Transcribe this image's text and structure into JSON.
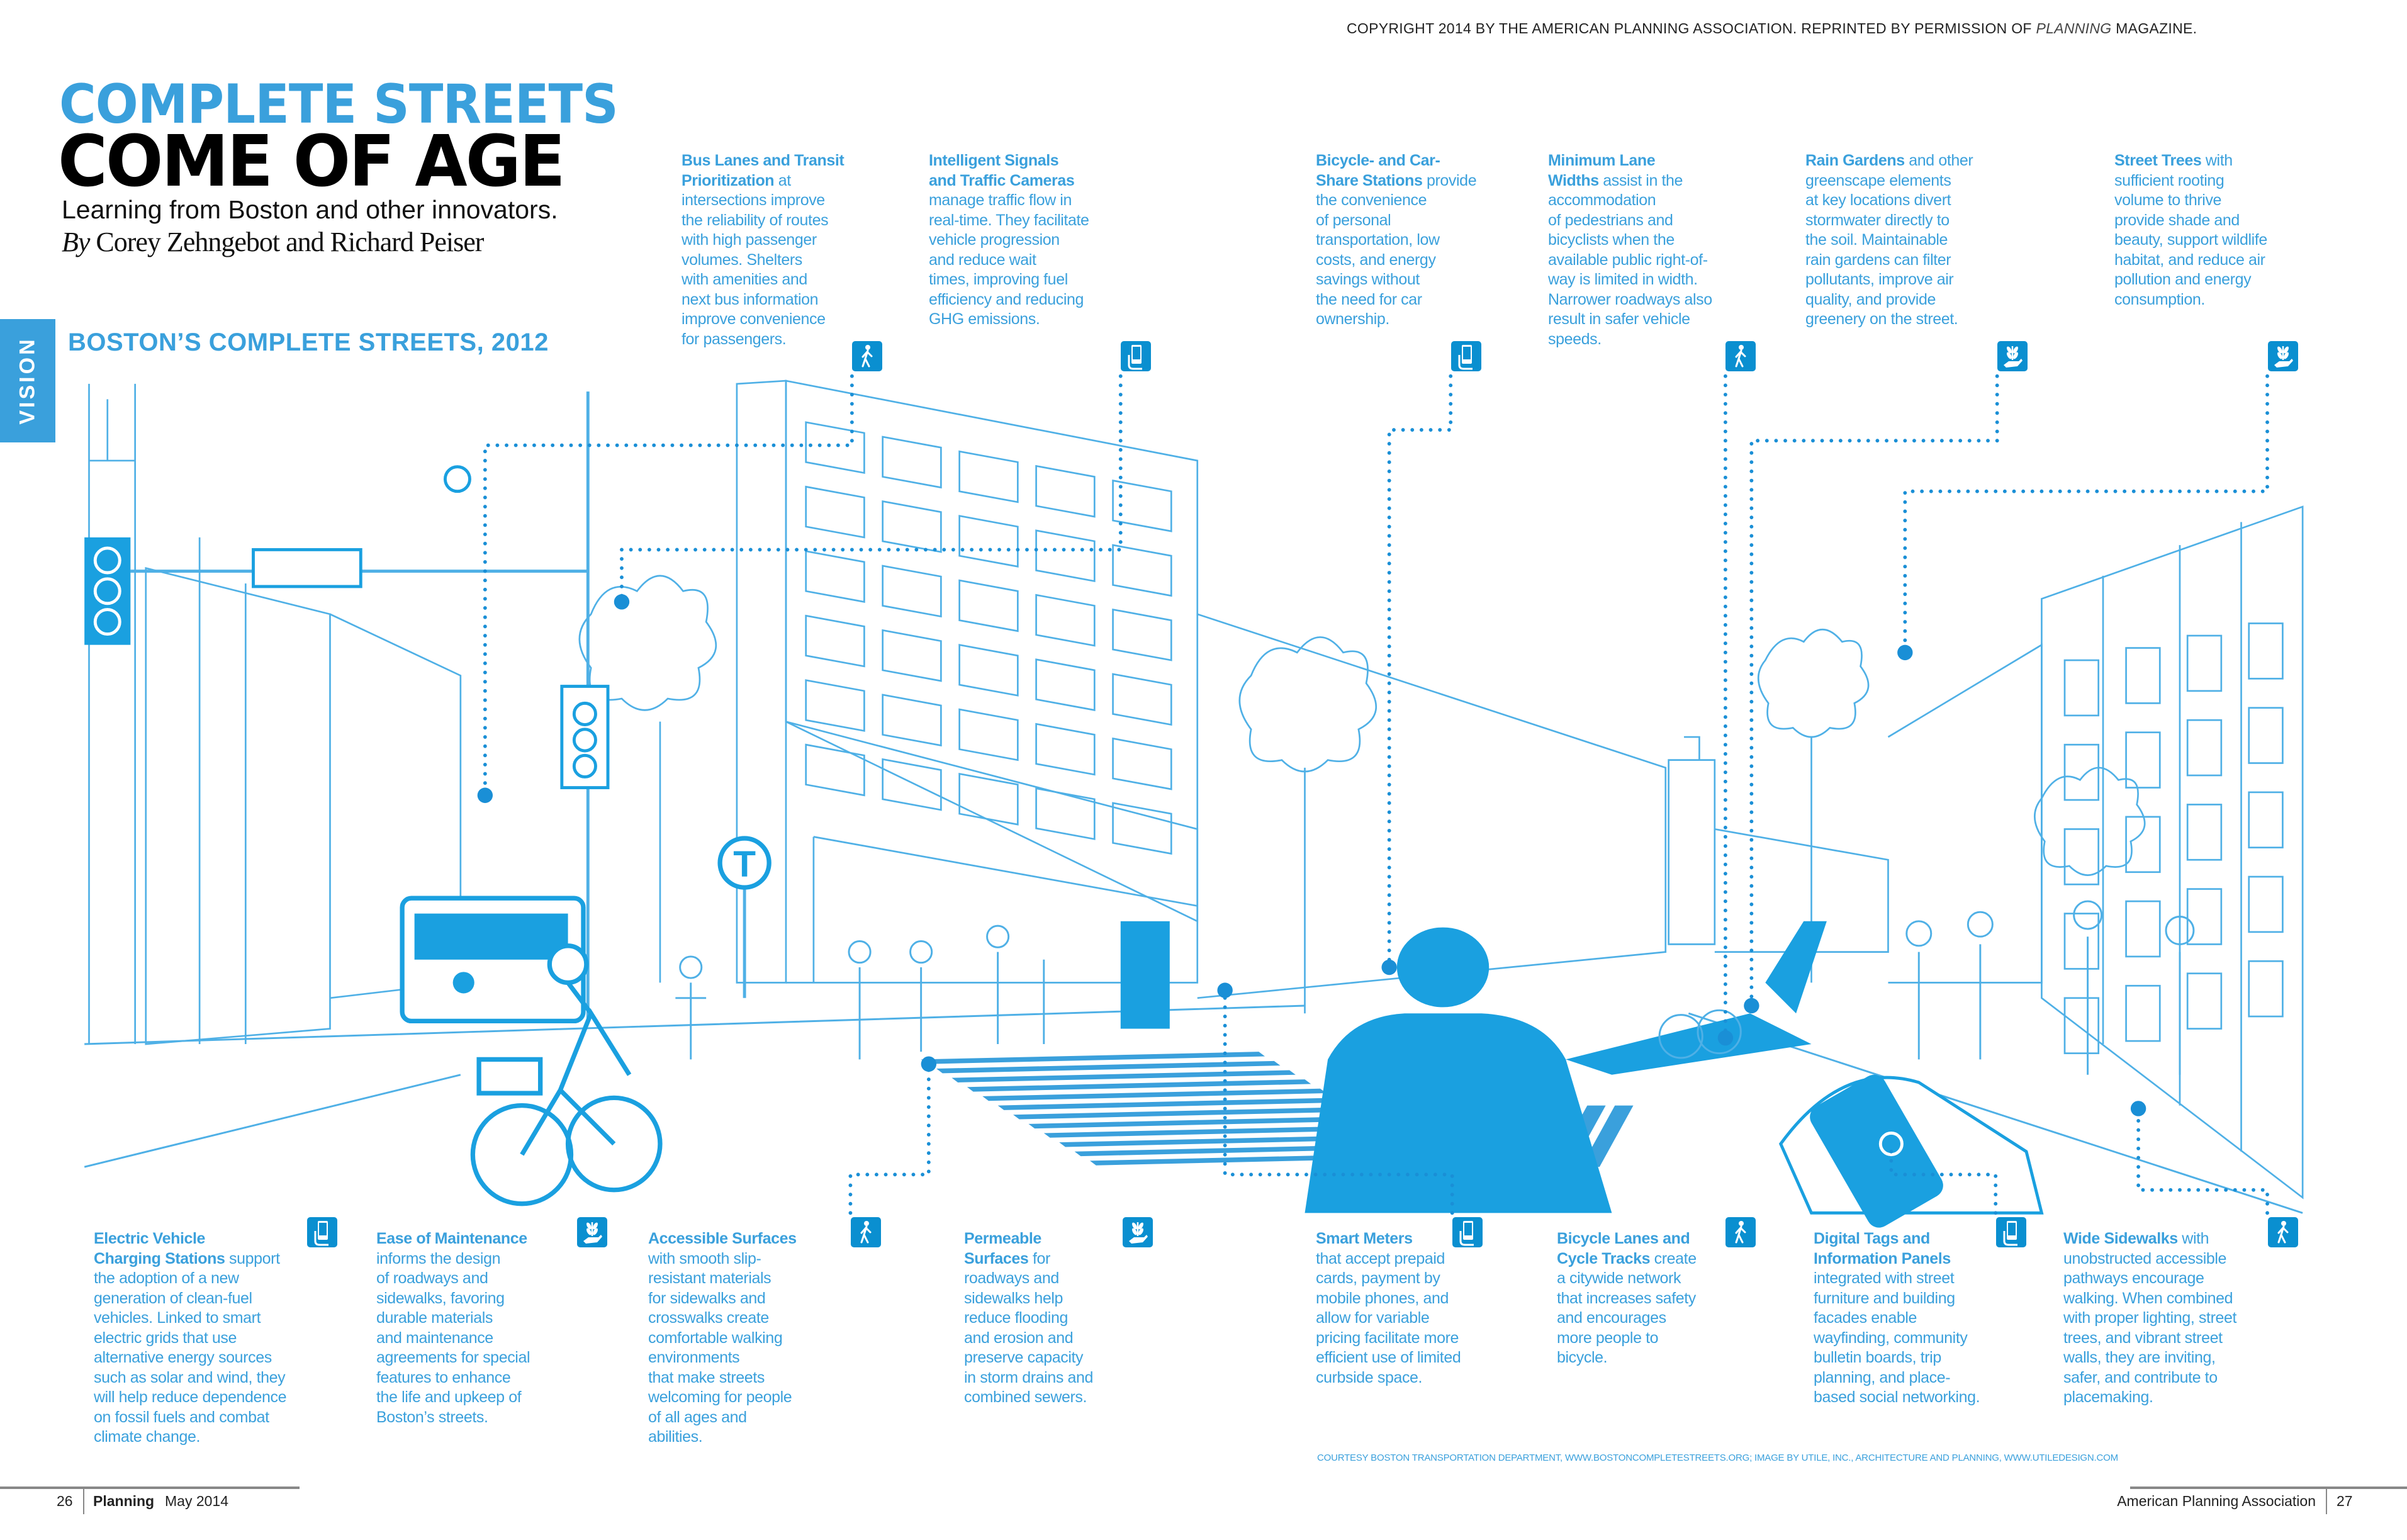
{
  "header": {
    "copyright_prefix": "COPYRIGHT 2014 BY THE AMERICAN PLANNING ASSOCIATION. REPRINTED BY PERMISSION OF ",
    "copyright_magazine": "PLANNING",
    "copyright_suffix": " MAGAZINE."
  },
  "article": {
    "title_line1": "COMPLETE STREETS",
    "title_line2": "COME OF AGE",
    "subtitle": "Learning from Boston and other innovators.",
    "byline_by": "By",
    "byline_authors": " Corey Zehngebot and Richard Peiser",
    "section_tab": "VISION",
    "section_heading": "BOSTON’S COMPLETE STREETS, 2012"
  },
  "colors": {
    "accent": "#3aa0dc",
    "icon_bg": "#0a8fd0",
    "illustration_line": "#4fb0e6",
    "illustration_fill": "#1aa0e0"
  },
  "callouts_top": [
    {
      "lead": "Bus Lanes and Transit\nPrioritization",
      "body": " at\nintersections improve\nthe reliability of routes\nwith high passenger\nvolumes. Shelters\nwith amenities and\nnext bus information\nimprove convenience\nfor passengers.",
      "icon": "pedestrian-icon"
    },
    {
      "lead": "Intelligent Signals\nand Traffic Cameras",
      "body": "\nmanage traffic flow in\nreal-time. They facilitate\nvehicle progression\nand reduce wait\ntimes, improving fuel\nefficiency and reducing\nGHG emissions.",
      "icon": "smartphone-icon"
    },
    {
      "lead": "Bicycle- and Car-\nShare Stations",
      "body": " provide\nthe convenience\nof personal\ntransportation, low\ncosts, and energy\nsavings without\nthe need for car\nownership.",
      "icon": "smartphone-icon"
    },
    {
      "lead": "Minimum Lane\nWidths",
      "body": " assist in the\naccommodation\nof pedestrians and\nbicyclists when the\navailable public right-of-\nway is limited in width.\nNarrower roadways also\nresult in safer vehicle\nspeeds.",
      "icon": "pedestrian-icon"
    },
    {
      "lead": "Rain Gardens",
      "body": " and other\ngreenscape elements\nat key locations divert\nstormwater directly to\nthe soil. Maintainable\nrain gardens can filter\npollutants, improve air\nquality, and provide\ngreenery on the street.",
      "icon": "plant-in-hand-icon"
    },
    {
      "lead": "Street Trees",
      "body": " with\nsufficient rooting\nvolume to thrive\nprovide shade and\nbeauty, support wildlife\nhabitat, and reduce air\npollution and energy\nconsumption.",
      "icon": "plant-in-hand-icon"
    }
  ],
  "callouts_bottom": [
    {
      "lead": "Electric Vehicle\nCharging Stations",
      "body": " support\nthe adoption of a new\ngeneration of clean-fuel\nvehicles. Linked to smart\nelectric grids that use\nalternative energy sources\nsuch as solar and wind, they\nwill help reduce dependence\non fossil fuels and combat\nclimate change.",
      "icon": "smartphone-icon"
    },
    {
      "lead": "Ease of Maintenance",
      "body": "\ninforms the design\nof roadways and\nsidewalks, favoring\ndurable materials\nand maintenance\nagreements for special\nfeatures to enhance\nthe life and upkeep of\nBoston’s streets.",
      "icon": "plant-in-hand-icon"
    },
    {
      "lead": "Accessible Surfaces",
      "body": "\nwith smooth slip-\nresistant materials\nfor sidewalks and\ncrosswalks create\ncomfortable walking\nenvironments\nthat make streets\nwelcoming for people\nof all ages and\nabilities.",
      "icon": "pedestrian-icon"
    },
    {
      "lead": "Permeable\nSurfaces",
      "body": " for\nroadways and\nsidewalks help\nreduce flooding\nand erosion and\npreserve capacity\nin storm drains and\ncombined sewers.",
      "icon": "plant-in-hand-icon"
    },
    {
      "lead": "Smart Meters",
      "body": "\nthat accept prepaid\ncards, payment by\nmobile phones, and\nallow for variable\npricing facilitate more\nefficient use of limited\ncurbside space.",
      "icon": "smartphone-icon"
    },
    {
      "lead": "Bicycle Lanes and\nCycle Tracks",
      "body": " create\na citywide network\nthat increases safety\nand encourages\nmore people to\nbicycle.",
      "icon": "pedestrian-icon"
    },
    {
      "lead": "Digital Tags and\nInformation Panels",
      "body": "\nintegrated with street\nfurniture and building\nfacades enable\nwayfinding, community\nbulletin boards, trip\nplanning, and place-\nbased social networking.",
      "icon": "smartphone-icon"
    },
    {
      "lead": "Wide Sidewalks",
      "body": " with\nunobstructed accessible\npathways encourage\nwalking. When combined\nwith proper lighting, street\ntrees, and vibrant street\nwalls, they are inviting,\nsafer, and contribute to\nplacemaking.",
      "icon": "pedestrian-icon"
    }
  ],
  "illustration": {
    "transit_sign": "T"
  },
  "credit": "COURTESY BOSTON TRANSPORTATION DEPARTMENT, WWW.BOSTONCOMPLETESTREETS.ORG; IMAGE BY UTILE, INC., ARCHITECTURE AND PLANNING, WWW.UTILEDESIGN.COM",
  "footer": {
    "left_page": "26",
    "magazine": "Planning",
    "issue": "May 2014",
    "publisher": "American Planning Association",
    "right_page": "27"
  }
}
